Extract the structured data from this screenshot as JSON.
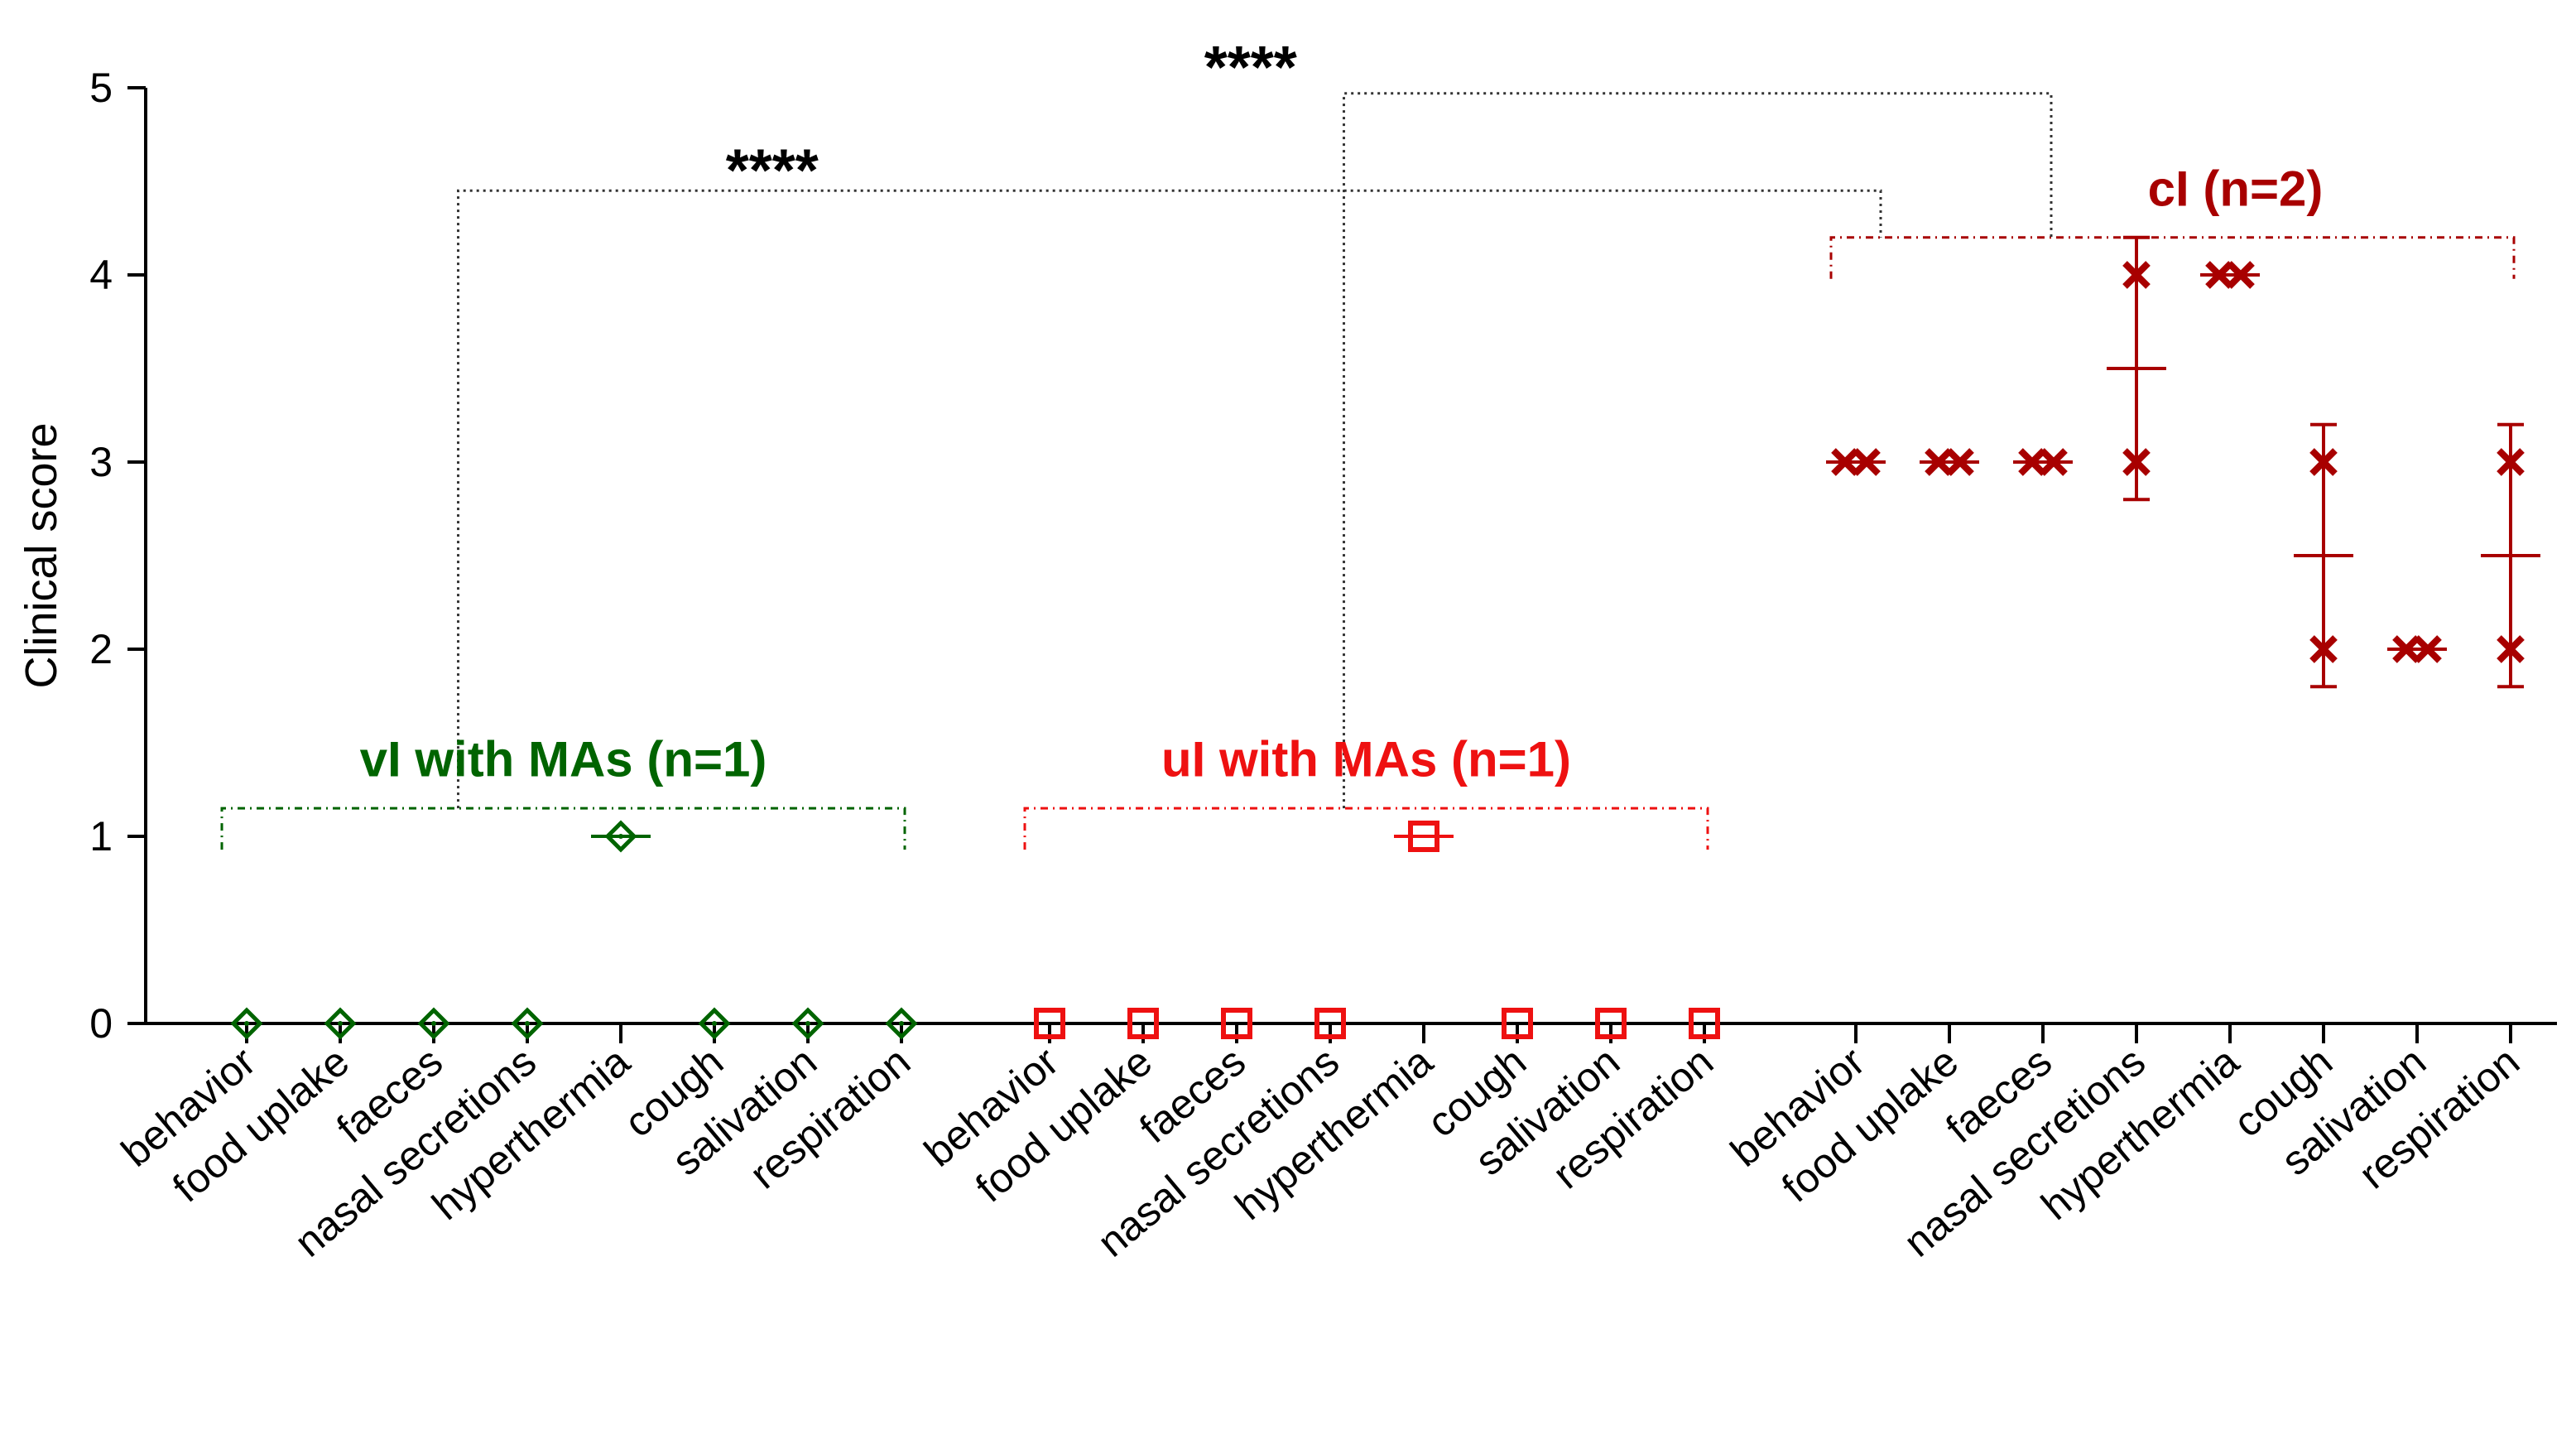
{
  "chart_data": {
    "type": "scatter",
    "ylabel": "Clinical score",
    "ylim": [
      0,
      5
    ],
    "yticks": [
      0,
      1,
      2,
      3,
      4,
      5
    ],
    "grid": false,
    "categories": [
      "behavior",
      "food uplake",
      "faeces",
      "nasal secretions",
      "hyperthermia",
      "cough",
      "salivation",
      "respiration"
    ],
    "groups": [
      {
        "name": "vI with MAs (n=1)",
        "color": "#006400",
        "marker": "diamond",
        "points": [
          {
            "category": "behavior",
            "values": [
              0
            ]
          },
          {
            "category": "food uplake",
            "values": [
              0
            ]
          },
          {
            "category": "faeces",
            "values": [
              0
            ]
          },
          {
            "category": "nasal secretions",
            "values": [
              0
            ]
          },
          {
            "category": "hyperthermia",
            "values": [
              1
            ]
          },
          {
            "category": "cough",
            "values": [
              0
            ]
          },
          {
            "category": "salivation",
            "values": [
              0
            ]
          },
          {
            "category": "respiration",
            "values": [
              0
            ]
          }
        ]
      },
      {
        "name": "uI with MAs (n=1)",
        "color": "#ee1111",
        "marker": "square",
        "points": [
          {
            "category": "behavior",
            "values": [
              0
            ]
          },
          {
            "category": "food uplake",
            "values": [
              0
            ]
          },
          {
            "category": "faeces",
            "values": [
              0
            ]
          },
          {
            "category": "nasal secretions",
            "values": [
              0
            ]
          },
          {
            "category": "hyperthermia",
            "values": [
              1
            ]
          },
          {
            "category": "cough",
            "values": [
              0
            ]
          },
          {
            "category": "salivation",
            "values": [
              0
            ]
          },
          {
            "category": "respiration",
            "values": [
              0
            ]
          }
        ]
      },
      {
        "name": "cI (n=2)",
        "color": "#a80000",
        "marker": "x",
        "points": [
          {
            "category": "behavior",
            "values": [
              3,
              3
            ],
            "mean": 3,
            "errlow": 3,
            "errhigh": 3
          },
          {
            "category": "food uplake",
            "values": [
              3,
              3
            ],
            "mean": 3,
            "errlow": 3,
            "errhigh": 3
          },
          {
            "category": "faeces",
            "values": [
              3,
              3
            ],
            "mean": 3,
            "errlow": 3,
            "errhigh": 3
          },
          {
            "category": "nasal secretions",
            "values": [
              4,
              3
            ],
            "mean": 3.5,
            "errlow": 2.8,
            "errhigh": 4.2
          },
          {
            "category": "hyperthermia",
            "values": [
              4,
              4
            ],
            "mean": 4,
            "errlow": 4,
            "errhigh": 4
          },
          {
            "category": "cough",
            "values": [
              3,
              2
            ],
            "mean": 2.5,
            "errlow": 1.8,
            "errhigh": 3.2
          },
          {
            "category": "salivation",
            "values": [
              2,
              2
            ],
            "mean": 2,
            "errlow": 2,
            "errhigh": 2
          },
          {
            "category": "respiration",
            "values": [
              3,
              2
            ],
            "mean": 2.5,
            "errlow": 1.8,
            "errhigh": 3.2
          }
        ]
      }
    ],
    "significance": [
      {
        "label": "****",
        "from_group": 0,
        "to_group": 2
      },
      {
        "label": "****",
        "from_group": 1,
        "to_group": 2
      }
    ]
  }
}
